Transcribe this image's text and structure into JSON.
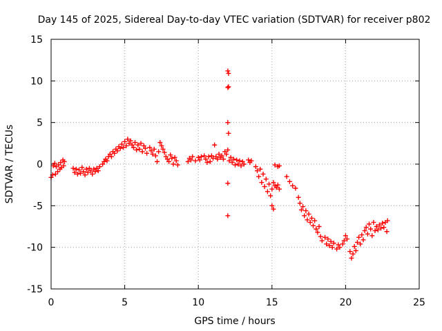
{
  "chart_data": {
    "type": "scatter",
    "title": "Day 145 of 2025, Sidereal Day-to-day VTEC variation (SDTVAR) for receiver p802",
    "xlabel": "GPS time / hours",
    "ylabel": "SDTVAR / TECUs",
    "xlim": [
      0,
      25
    ],
    "ylim": [
      -15,
      15
    ],
    "x_ticks": [
      0,
      5,
      10,
      15,
      20,
      25
    ],
    "x_tick_labels": [
      "0",
      "5",
      "10",
      "15",
      "20",
      "25"
    ],
    "y_ticks": [
      -15,
      -10,
      -5,
      0,
      5,
      10,
      15
    ],
    "y_tick_labels": [
      "-15",
      "-10",
      "-5",
      "0",
      "5",
      "10",
      "15"
    ],
    "grid": true,
    "marker": "+",
    "series": [
      {
        "name": "SDTVAR",
        "color": "#ff0000",
        "points": [
          [
            0.0,
            -1.6
          ],
          [
            0.1,
            -1.3
          ],
          [
            0.15,
            -0.2
          ],
          [
            0.25,
            0.1
          ],
          [
            0.3,
            -1.2
          ],
          [
            0.35,
            -0.3
          ],
          [
            0.45,
            -0.9
          ],
          [
            0.5,
            -0.1
          ],
          [
            0.6,
            -0.6
          ],
          [
            0.65,
            0.2
          ],
          [
            0.7,
            -0.4
          ],
          [
            0.8,
            0.5
          ],
          [
            0.85,
            -0.2
          ],
          [
            0.9,
            0.3
          ],
          [
            1.5,
            -0.5
          ],
          [
            1.6,
            -1.0
          ],
          [
            1.7,
            -0.6
          ],
          [
            1.8,
            -1.2
          ],
          [
            1.9,
            -0.7
          ],
          [
            2.0,
            -1.1
          ],
          [
            2.1,
            -0.4
          ],
          [
            2.2,
            -0.9
          ],
          [
            2.3,
            -1.3
          ],
          [
            2.4,
            -0.6
          ],
          [
            2.5,
            -1.0
          ],
          [
            2.6,
            -0.5
          ],
          [
            2.7,
            -0.8
          ],
          [
            2.8,
            -1.2
          ],
          [
            2.9,
            -0.6
          ],
          [
            3.0,
            -0.9
          ],
          [
            3.1,
            -0.5
          ],
          [
            3.2,
            -0.8
          ],
          [
            3.3,
            -0.3
          ],
          [
            3.5,
            0.0
          ],
          [
            3.6,
            0.3
          ],
          [
            3.7,
            0.6
          ],
          [
            3.8,
            0.4
          ],
          [
            3.9,
            0.9
          ],
          [
            4.0,
            1.2
          ],
          [
            4.1,
            0.9
          ],
          [
            4.2,
            1.5
          ],
          [
            4.3,
            1.3
          ],
          [
            4.4,
            1.8
          ],
          [
            4.5,
            1.6
          ],
          [
            4.6,
            2.1
          ],
          [
            4.7,
            1.9
          ],
          [
            4.8,
            2.4
          ],
          [
            4.9,
            2.0
          ],
          [
            5.0,
            2.7
          ],
          [
            5.1,
            2.2
          ],
          [
            5.2,
            3.0
          ],
          [
            5.3,
            2.5
          ],
          [
            5.4,
            2.8
          ],
          [
            5.5,
            2.3
          ],
          [
            5.6,
            2.0
          ],
          [
            5.7,
            2.6
          ],
          [
            5.8,
            1.7
          ],
          [
            5.9,
            2.3
          ],
          [
            6.0,
            1.8
          ],
          [
            6.1,
            2.5
          ],
          [
            6.2,
            1.5
          ],
          [
            6.3,
            2.2
          ],
          [
            6.4,
            1.9
          ],
          [
            6.5,
            1.3
          ],
          [
            6.7,
            2.0
          ],
          [
            6.8,
            1.6
          ],
          [
            6.9,
            1.2
          ],
          [
            7.0,
            1.8
          ],
          [
            7.1,
            1.0
          ],
          [
            7.2,
            0.3
          ],
          [
            7.3,
            1.5
          ],
          [
            7.4,
            2.6
          ],
          [
            7.5,
            2.2
          ],
          [
            7.6,
            1.8
          ],
          [
            7.7,
            1.4
          ],
          [
            7.8,
            0.9
          ],
          [
            7.9,
            0.6
          ],
          [
            8.0,
            0.3
          ],
          [
            8.1,
            1.1
          ],
          [
            8.2,
            0.7
          ],
          [
            8.3,
            0.0
          ],
          [
            8.4,
            0.8
          ],
          [
            8.5,
            0.4
          ],
          [
            8.6,
            -0.1
          ],
          [
            9.3,
            0.3
          ],
          [
            9.4,
            0.7
          ],
          [
            9.5,
            0.5
          ],
          [
            9.6,
            0.9
          ],
          [
            9.8,
            0.4
          ],
          [
            10.0,
            0.8
          ],
          [
            10.1,
            0.5
          ],
          [
            10.2,
            0.9
          ],
          [
            10.4,
            1.0
          ],
          [
            10.5,
            0.6
          ],
          [
            10.6,
            0.2
          ],
          [
            10.7,
            0.9
          ],
          [
            10.8,
            0.3
          ],
          [
            10.9,
            1.0
          ],
          [
            11.0,
            0.7
          ],
          [
            11.1,
            2.3
          ],
          [
            11.2,
            0.9
          ],
          [
            11.3,
            0.6
          ],
          [
            11.4,
            1.2
          ],
          [
            11.5,
            0.8
          ],
          [
            11.6,
            1.0
          ],
          [
            11.7,
            0.6
          ],
          [
            11.8,
            1.5
          ],
          [
            11.9,
            1.2
          ],
          [
            12.0,
            1.7
          ],
          [
            12.0,
            11.2
          ],
          [
            12.05,
            10.9
          ],
          [
            12.0,
            9.2
          ],
          [
            12.05,
            9.3
          ],
          [
            12.0,
            5.0
          ],
          [
            12.05,
            3.7
          ],
          [
            12.0,
            -2.3
          ],
          [
            12.0,
            -6.2
          ],
          [
            12.1,
            0.4
          ],
          [
            12.2,
            0.8
          ],
          [
            12.3,
            0.2
          ],
          [
            12.4,
            0.6
          ],
          [
            12.5,
            -0.1
          ],
          [
            12.6,
            0.5
          ],
          [
            12.7,
            0.0
          ],
          [
            12.8,
            0.4
          ],
          [
            12.9,
            -0.2
          ],
          [
            13.0,
            0.3
          ],
          [
            13.1,
            0.0
          ],
          [
            13.4,
            0.5
          ],
          [
            13.5,
            0.2
          ],
          [
            13.6,
            0.4
          ],
          [
            13.9,
            -0.3
          ],
          [
            14.0,
            -0.8
          ],
          [
            14.1,
            -1.5
          ],
          [
            14.2,
            -0.6
          ],
          [
            14.3,
            -2.2
          ],
          [
            14.4,
            -1.2
          ],
          [
            14.5,
            -2.7
          ],
          [
            14.6,
            -1.8
          ],
          [
            14.7,
            -3.3
          ],
          [
            14.8,
            -2.4
          ],
          [
            14.9,
            -3.8
          ],
          [
            15.0,
            -3.0
          ],
          [
            15.1,
            -2.2
          ],
          [
            15.2,
            -2.6
          ],
          [
            15.3,
            -2.8
          ],
          [
            15.4,
            -2.5
          ],
          [
            15.5,
            -3.0
          ],
          [
            15.0,
            -5.0
          ],
          [
            15.1,
            -5.4
          ],
          [
            15.2,
            -0.1
          ],
          [
            15.4,
            -0.3
          ],
          [
            15.5,
            -0.2
          ],
          [
            16.0,
            -1.5
          ],
          [
            16.2,
            -2.1
          ],
          [
            16.4,
            -2.6
          ],
          [
            16.6,
            -2.9
          ],
          [
            16.8,
            -4.0
          ],
          [
            16.9,
            -4.7
          ],
          [
            17.0,
            -5.5
          ],
          [
            17.1,
            -5.1
          ],
          [
            17.2,
            -6.2
          ],
          [
            17.3,
            -5.6
          ],
          [
            17.4,
            -6.7
          ],
          [
            17.5,
            -6.0
          ],
          [
            17.6,
            -7.0
          ],
          [
            17.7,
            -6.5
          ],
          [
            17.8,
            -7.4
          ],
          [
            17.9,
            -6.8
          ],
          [
            18.0,
            -7.8
          ],
          [
            18.1,
            -8.2
          ],
          [
            18.2,
            -7.5
          ],
          [
            18.3,
            -8.7
          ],
          [
            18.4,
            -9.2
          ],
          [
            18.6,
            -8.8
          ],
          [
            18.7,
            -9.6
          ],
          [
            18.8,
            -9.0
          ],
          [
            18.9,
            -9.8
          ],
          [
            19.0,
            -9.3
          ],
          [
            19.1,
            -10.0
          ],
          [
            19.2,
            -9.5
          ],
          [
            19.4,
            -10.2
          ],
          [
            19.5,
            -9.7
          ],
          [
            19.6,
            -10.0
          ],
          [
            19.8,
            -9.6
          ],
          [
            19.9,
            -9.2
          ],
          [
            20.0,
            -8.6
          ],
          [
            20.1,
            -9.0
          ],
          [
            20.3,
            -10.5
          ],
          [
            20.4,
            -11.3
          ],
          [
            20.5,
            -10.8
          ],
          [
            20.6,
            -9.9
          ],
          [
            20.7,
            -10.4
          ],
          [
            20.8,
            -9.4
          ],
          [
            20.9,
            -8.8
          ],
          [
            21.0,
            -9.6
          ],
          [
            21.1,
            -8.5
          ],
          [
            21.2,
            -9.1
          ],
          [
            21.3,
            -8.0
          ],
          [
            21.4,
            -7.6
          ],
          [
            21.5,
            -8.4
          ],
          [
            21.6,
            -7.2
          ],
          [
            21.7,
            -7.8
          ],
          [
            21.8,
            -8.6
          ],
          [
            21.9,
            -7.0
          ],
          [
            22.0,
            -8.0
          ],
          [
            22.1,
            -7.5
          ],
          [
            22.2,
            -7.9
          ],
          [
            22.3,
            -7.3
          ],
          [
            22.4,
            -7.7
          ],
          [
            22.5,
            -7.1
          ],
          [
            22.6,
            -7.6
          ],
          [
            22.7,
            -7.0
          ],
          [
            22.8,
            -8.1
          ],
          [
            22.85,
            -6.8
          ]
        ]
      }
    ]
  }
}
